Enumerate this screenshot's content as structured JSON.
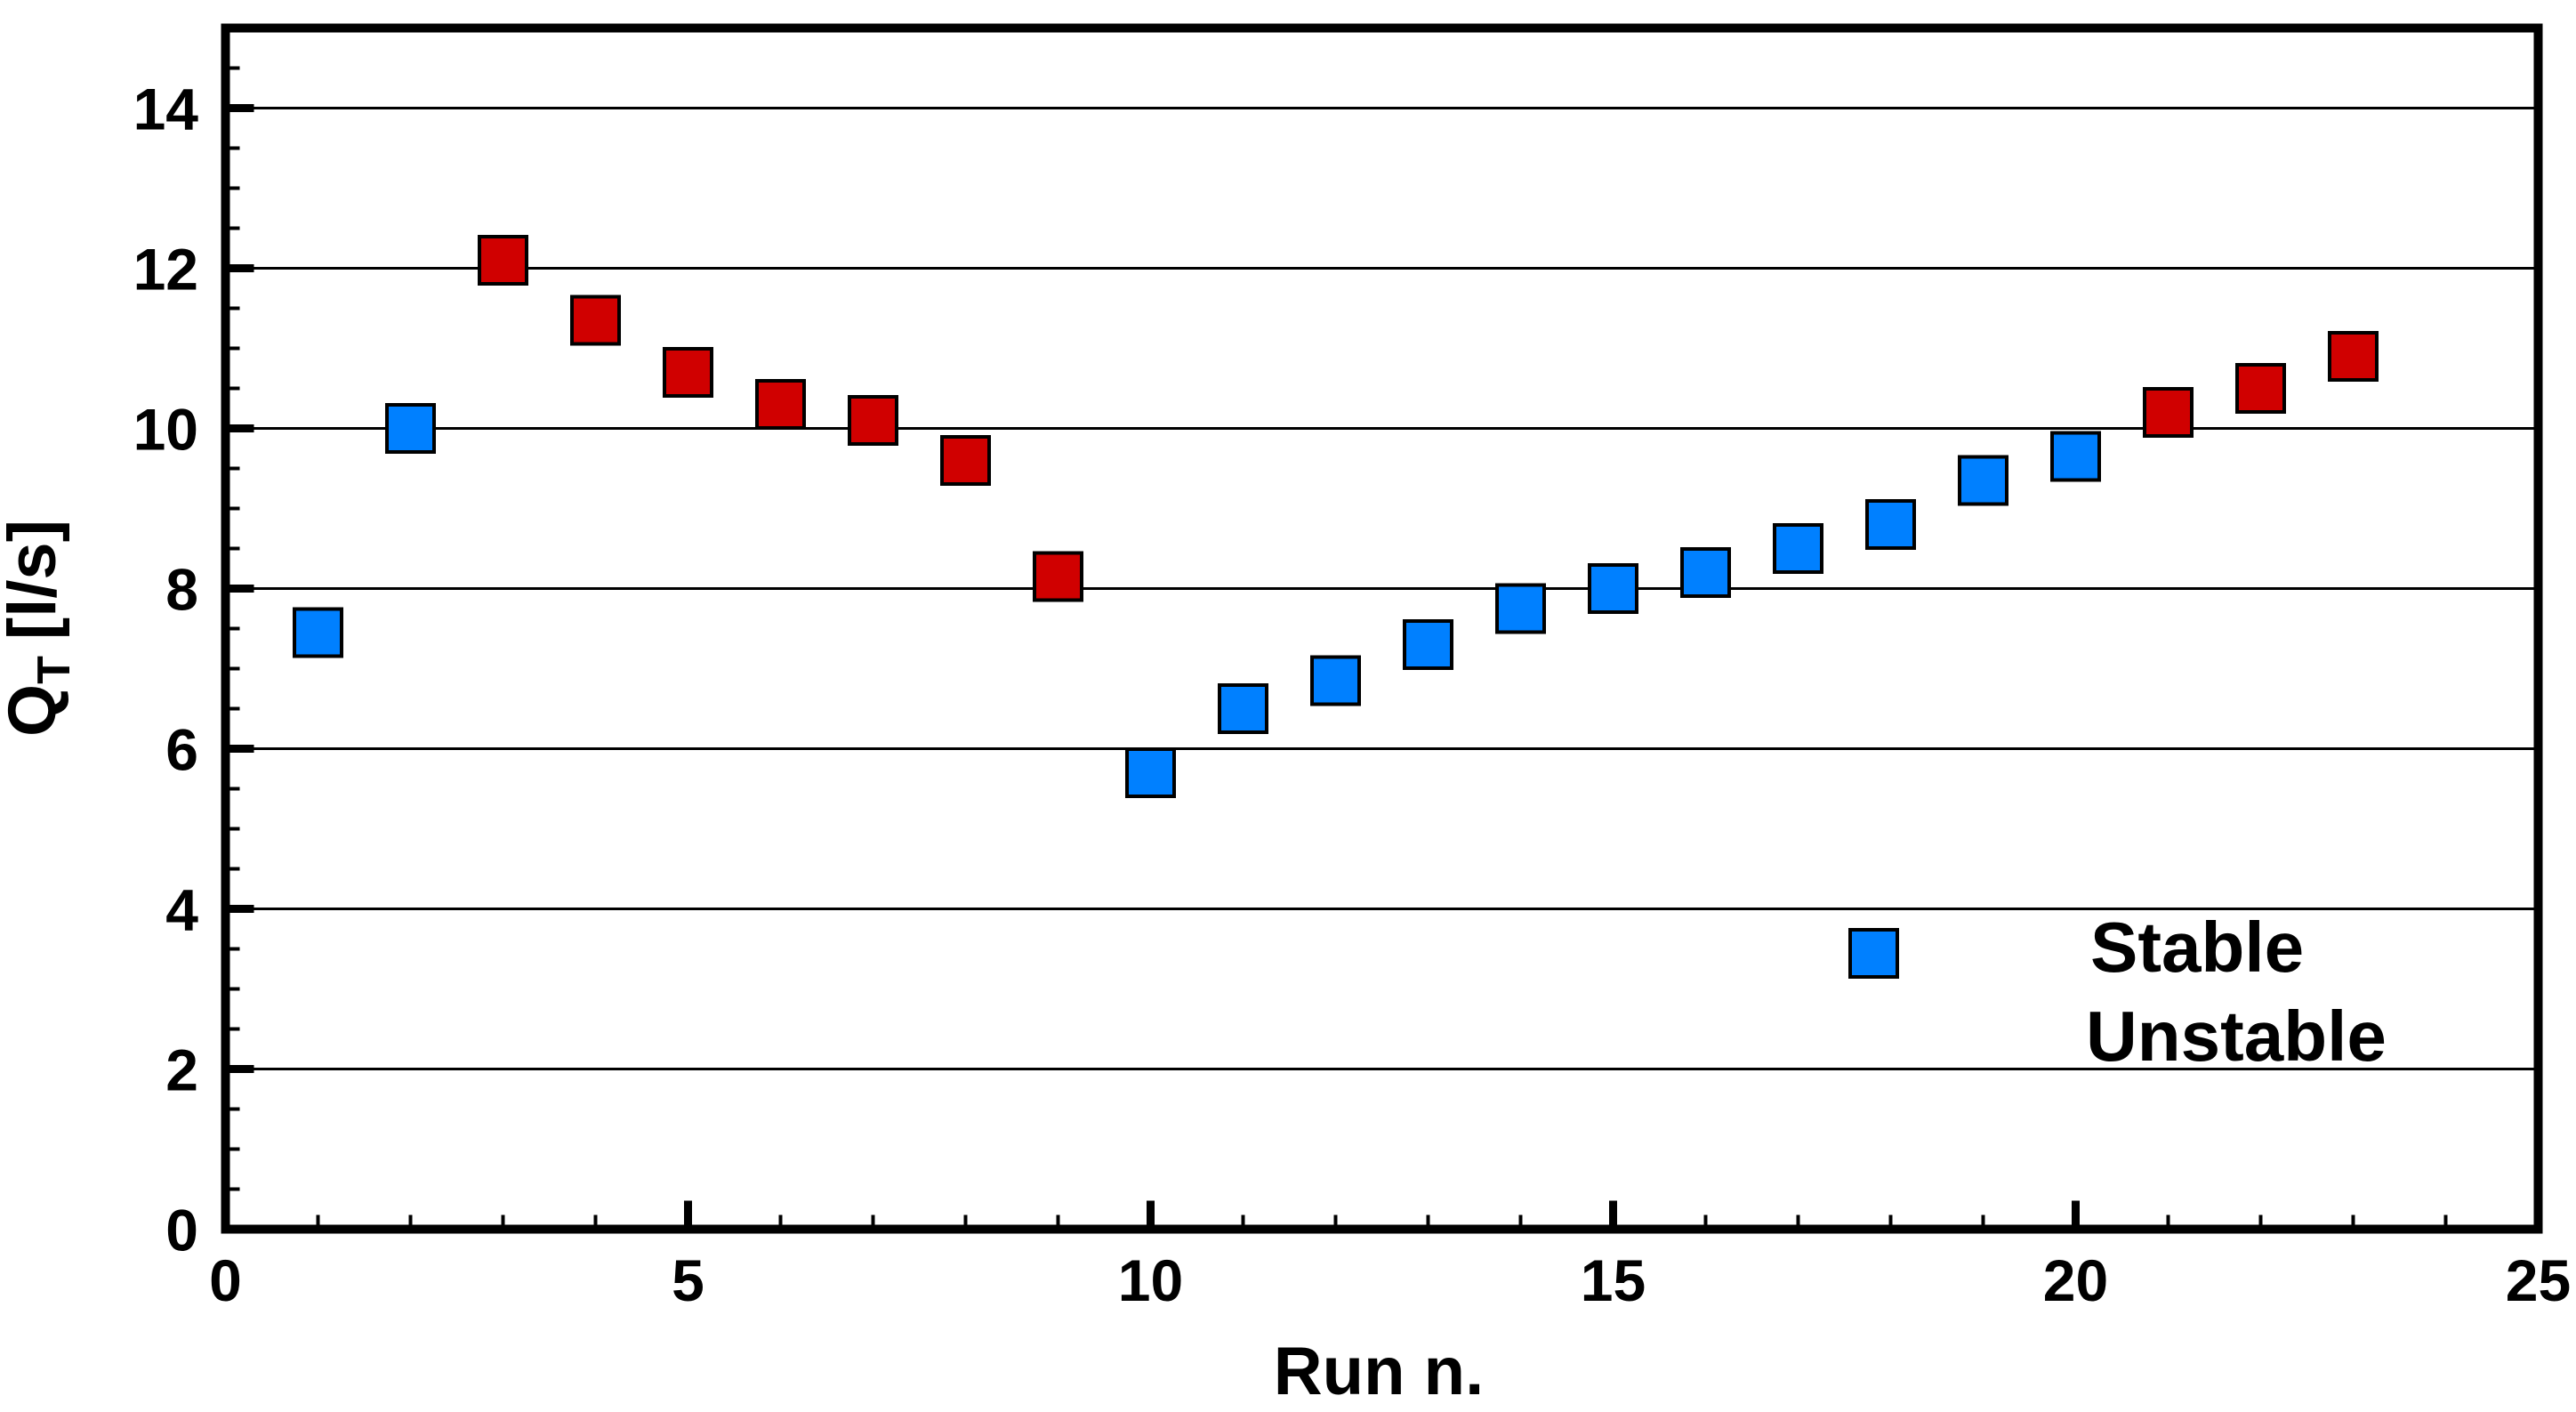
{
  "chart_data": {
    "type": "scatter",
    "title": "",
    "xlabel": "Run n.",
    "ylabel": "QT [l/s]",
    "ylabel_rich": {
      "base": "Q",
      "sub": "T",
      "rest": "[l/s]"
    },
    "xlim": [
      0,
      25
    ],
    "ylim": [
      0,
      15
    ],
    "x_major_ticks": [
      0,
      5,
      10,
      15,
      20,
      25
    ],
    "x_tick_labels": [
      "0",
      "5",
      "10",
      "15",
      "20",
      "25"
    ],
    "x_minor_step": 1,
    "y_major_ticks": [
      0,
      2,
      4,
      6,
      8,
      10,
      12,
      14
    ],
    "y_tick_labels": [
      "0",
      "2",
      "4",
      "6",
      "8",
      "10",
      "12",
      "14"
    ],
    "y_minor_step": 0.5,
    "grid": "horizontal-major-only",
    "marker": {
      "shape": "square",
      "size": 53,
      "stroke": "#000000",
      "stroke_width": 4
    },
    "series": [
      {
        "name": "Stable",
        "color": "#0080FF",
        "points": [
          [
            1,
            7.45
          ],
          [
            2,
            10.0
          ],
          [
            10,
            5.7
          ],
          [
            11,
            6.5
          ],
          [
            12,
            6.85
          ],
          [
            13,
            7.3
          ],
          [
            14,
            7.75
          ],
          [
            15,
            8.0
          ],
          [
            16,
            8.2
          ],
          [
            17,
            8.5
          ],
          [
            18,
            8.8
          ],
          [
            19,
            9.35
          ],
          [
            20,
            9.65
          ]
        ]
      },
      {
        "name": "Unstable",
        "color": "#D00000",
        "points": [
          [
            3,
            12.1
          ],
          [
            4,
            11.35
          ],
          [
            5,
            10.7
          ],
          [
            6,
            10.3
          ],
          [
            7,
            10.1
          ],
          [
            8,
            9.6
          ],
          [
            9,
            8.15
          ],
          [
            21,
            10.2
          ],
          [
            22,
            10.5
          ],
          [
            23,
            10.9
          ]
        ]
      }
    ],
    "legend": {
      "position": "lower-right-inside",
      "entries": [
        {
          "label": "Stable",
          "color": "#0080FF",
          "marker_shown": true
        },
        {
          "label": "Unstable",
          "color": "#D00000",
          "marker_shown": false
        }
      ]
    }
  },
  "colors": {
    "background": "#ffffff",
    "axis": "#000000",
    "gridline": "#000000",
    "stable": "#0080FF",
    "unstable": "#D00000"
  }
}
